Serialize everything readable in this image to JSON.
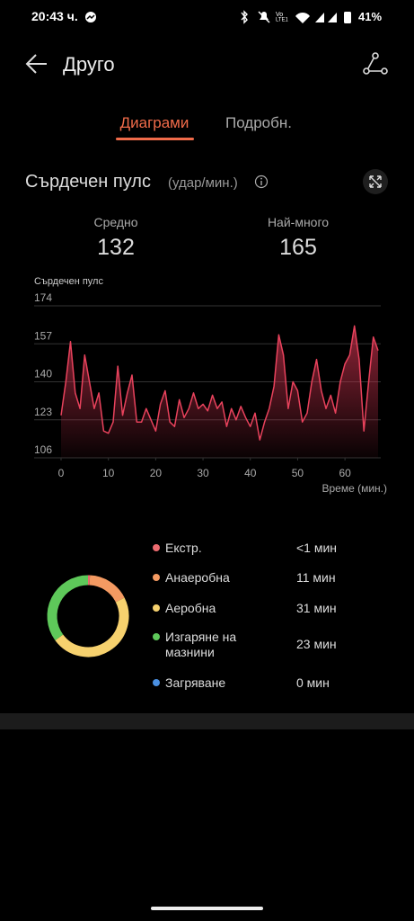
{
  "status_bar": {
    "time": "20:43 ч.",
    "battery": "41%"
  },
  "header": {
    "title": "Друго"
  },
  "tabs": [
    "Диаграми",
    "Подробн."
  ],
  "section": {
    "title": "Сърдечен пулс",
    "unit": "(удар/мин.)"
  },
  "stats": [
    {
      "label": "Средно",
      "value": 132
    },
    {
      "label": "Най-много",
      "value": 165
    }
  ],
  "chart_data": [
    {
      "type": "line",
      "y_label": "Сърдечен пулс",
      "x_label": "Време (мин.)",
      "x": [
        0,
        1,
        2,
        3,
        4,
        5,
        6,
        7,
        8,
        9,
        10,
        11,
        12,
        13,
        14,
        15,
        16,
        17,
        18,
        19,
        20,
        21,
        22,
        23,
        24,
        25,
        26,
        27,
        28,
        29,
        30,
        31,
        32,
        33,
        34,
        35,
        36,
        37,
        38,
        39,
        40,
        41,
        42,
        43,
        44,
        45,
        46,
        47,
        48,
        49,
        50,
        51,
        52,
        53,
        54,
        55,
        56,
        57,
        58,
        59,
        60,
        61,
        62,
        63,
        64,
        65,
        66,
        67
      ],
      "values": [
        125,
        140,
        158,
        135,
        128,
        152,
        140,
        128,
        135,
        118,
        117,
        122,
        147,
        125,
        135,
        143,
        122,
        122,
        128,
        123,
        118,
        130,
        136,
        122,
        120,
        132,
        124,
        128,
        135,
        128,
        130,
        127,
        134,
        128,
        131,
        120,
        128,
        123,
        129,
        124,
        120,
        126,
        114,
        122,
        128,
        138,
        161,
        152,
        128,
        140,
        136,
        122,
        126,
        140,
        150,
        136,
        128,
        134,
        126,
        140,
        148,
        152,
        165,
        150,
        118,
        140,
        160,
        154
      ],
      "color": "#e8425c",
      "xlim": [
        0,
        67
      ],
      "xticks": [
        0,
        10,
        20,
        30,
        40,
        50,
        60
      ],
      "ylim": [
        106,
        174
      ],
      "yticks": [
        106,
        123,
        140,
        157,
        174
      ],
      "grid": true
    },
    {
      "type": "donut",
      "categories": [
        "Екстр.",
        "Анаеробна",
        "Аеробна",
        "Изгаряне на мазнини",
        "Загряване"
      ],
      "colors": [
        "#ec6b6f",
        "#f49a62",
        "#f6d16e",
        "#5ec85a",
        "#4a90e2"
      ],
      "values": [
        0.5,
        11,
        31,
        23,
        0
      ],
      "value_labels": [
        "<1 мин",
        "11 мин",
        "31 мин",
        "23 мин",
        "0 мин"
      ]
    }
  ]
}
